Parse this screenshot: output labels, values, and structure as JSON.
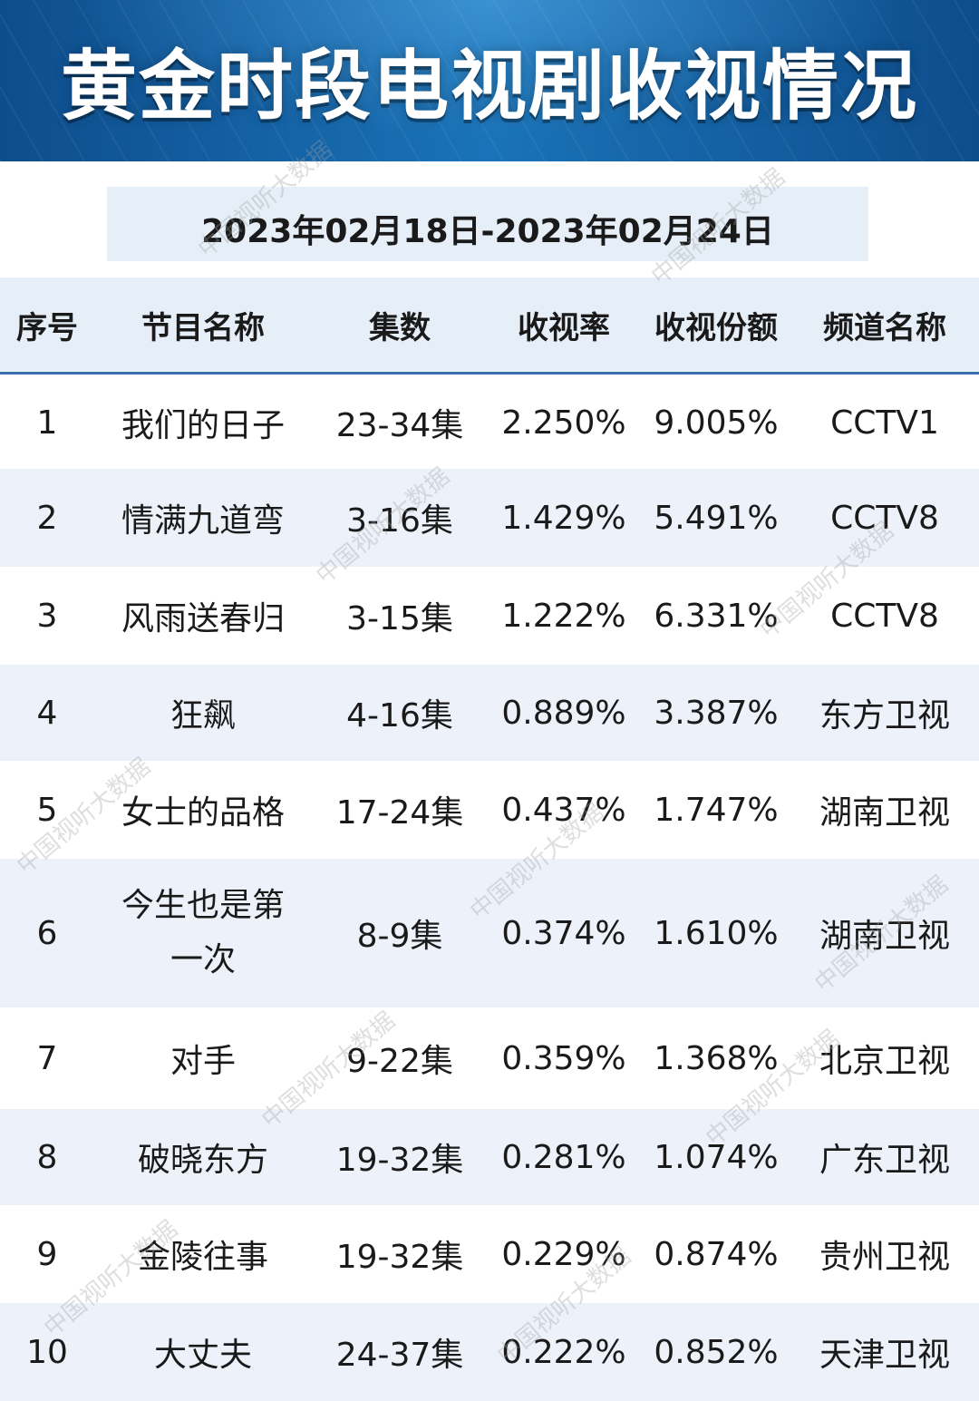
{
  "title": "黄金时段电视剧收视情况",
  "date_range": "2023年02月18日-2023年02月24日",
  "watermark": "中国视听大数据",
  "colors": {
    "banner": "#1a73b8",
    "header_bg": "#e6eef8",
    "row_alt_bg": "#edf2fa",
    "header_rule": "#3a6fb0"
  },
  "columns": {
    "no": "序号",
    "name": "节目名称",
    "episodes": "集数",
    "rating": "收视率",
    "share": "收视份额",
    "channel": "频道名称"
  },
  "rows": [
    {
      "no": "1",
      "name": "我们的日子",
      "episodes": "23-34集",
      "rating": "2.250%",
      "share": "9.005%",
      "channel": "CCTV1"
    },
    {
      "no": "2",
      "name": "情满九道弯",
      "episodes": "3-16集",
      "rating": "1.429%",
      "share": "5.491%",
      "channel": "CCTV8"
    },
    {
      "no": "3",
      "name": "风雨送春归",
      "episodes": "3-15集",
      "rating": "1.222%",
      "share": "6.331%",
      "channel": "CCTV8"
    },
    {
      "no": "4",
      "name": "狂飙",
      "episodes": "4-16集",
      "rating": "0.889%",
      "share": "3.387%",
      "channel": "东方卫视"
    },
    {
      "no": "5",
      "name": "女士的品格",
      "episodes": "17-24集",
      "rating": "0.437%",
      "share": "1.747%",
      "channel": "湖南卫视"
    },
    {
      "no": "6",
      "name": "今生也是第一次",
      "episodes": "8-9集",
      "rating": "0.374%",
      "share": "1.610%",
      "channel": "湖南卫视"
    },
    {
      "no": "7",
      "name": "对手",
      "episodes": "9-22集",
      "rating": "0.359%",
      "share": "1.368%",
      "channel": "北京卫视"
    },
    {
      "no": "8",
      "name": "破晓东方",
      "episodes": "19-32集",
      "rating": "0.281%",
      "share": "1.074%",
      "channel": "广东卫视"
    },
    {
      "no": "9",
      "name": "金陵往事",
      "episodes": "19-32集",
      "rating": "0.229%",
      "share": "0.874%",
      "channel": "贵州卫视"
    },
    {
      "no": "10",
      "name": "大丈夫",
      "episodes": "24-37集",
      "rating": "0.222%",
      "share": "0.852%",
      "channel": "天津卫视"
    }
  ]
}
